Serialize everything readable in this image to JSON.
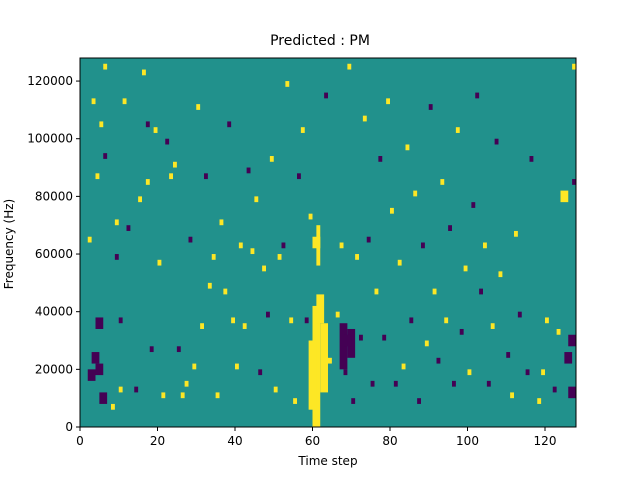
{
  "chart_data": {
    "type": "heatmap",
    "title": "Predicted : PM",
    "xlabel": "Time step",
    "ylabel": "Frequency (Hz)",
    "xlim": [
      0,
      128
    ],
    "ylim": [
      0,
      128000
    ],
    "xticks": [
      "0",
      "20",
      "40",
      "60",
      "80",
      "100",
      "120"
    ],
    "yticks": [
      "0",
      "20000",
      "40000",
      "60000",
      "80000",
      "100000",
      "120000"
    ],
    "grid": false,
    "legend": "none",
    "colormap": {
      "low": "#440154",
      "mid": "#21918c",
      "high": "#fde725"
    },
    "background_value": 0,
    "cells_note_unused": "",
    "cells": [
      [
        2,
        16000,
        4,
        "low"
      ],
      [
        3,
        22000,
        4,
        "low"
      ],
      [
        4,
        18000,
        4,
        "low"
      ],
      [
        5,
        8000,
        4,
        "low"
      ],
      [
        4,
        34000,
        4,
        "low"
      ],
      [
        2,
        64000,
        2,
        "high"
      ],
      [
        3,
        112000,
        2,
        "high"
      ],
      [
        4,
        86000,
        2,
        "high"
      ],
      [
        5,
        104000,
        2,
        "high"
      ],
      [
        6,
        93000,
        2,
        "low"
      ],
      [
        6,
        124000,
        2,
        "high"
      ],
      [
        8,
        6000,
        2,
        "high"
      ],
      [
        9,
        58000,
        2,
        "low"
      ],
      [
        9,
        70000,
        2,
        "high"
      ],
      [
        10,
        36000,
        2,
        "low"
      ],
      [
        11,
        112000,
        2,
        "high"
      ],
      [
        10,
        12000,
        2,
        "high"
      ],
      [
        12,
        68000,
        2,
        "low"
      ],
      [
        14,
        12000,
        2,
        "low"
      ],
      [
        15,
        78000,
        2,
        "high"
      ],
      [
        16,
        122000,
        2,
        "high"
      ],
      [
        17,
        104000,
        2,
        "low"
      ],
      [
        17,
        84000,
        2,
        "high"
      ],
      [
        18,
        26000,
        2,
        "low"
      ],
      [
        19,
        102000,
        2,
        "high"
      ],
      [
        20,
        56000,
        2,
        "high"
      ],
      [
        21,
        10000,
        2,
        "high"
      ],
      [
        22,
        98000,
        2,
        "low"
      ],
      [
        23,
        86000,
        2,
        "high"
      ],
      [
        24,
        90000,
        2,
        "high"
      ],
      [
        25,
        26000,
        2,
        "low"
      ],
      [
        26,
        10000,
        2,
        "high"
      ],
      [
        27,
        14000,
        2,
        "high"
      ],
      [
        28,
        64000,
        2,
        "low"
      ],
      [
        29,
        20000,
        2,
        "high"
      ],
      [
        30,
        110000,
        2,
        "high"
      ],
      [
        31,
        34000,
        2,
        "high"
      ],
      [
        32,
        86000,
        2,
        "low"
      ],
      [
        33,
        48000,
        2,
        "high"
      ],
      [
        34,
        58000,
        2,
        "high"
      ],
      [
        35,
        10000,
        2,
        "high"
      ],
      [
        36,
        70000,
        2,
        "high"
      ],
      [
        37,
        46000,
        2,
        "high"
      ],
      [
        38,
        104000,
        2,
        "low"
      ],
      [
        39,
        36000,
        2,
        "high"
      ],
      [
        40,
        20000,
        2,
        "high"
      ],
      [
        41,
        62000,
        2,
        "high"
      ],
      [
        42,
        34000,
        2,
        "high"
      ],
      [
        43,
        88000,
        2,
        "low"
      ],
      [
        44,
        60000,
        2,
        "high"
      ],
      [
        45,
        78000,
        2,
        "high"
      ],
      [
        46,
        18000,
        2,
        "low"
      ],
      [
        47,
        54000,
        2,
        "high"
      ],
      [
        48,
        38000,
        2,
        "low"
      ],
      [
        49,
        92000,
        2,
        "high"
      ],
      [
        50,
        12000,
        2,
        "high"
      ],
      [
        51,
        58000,
        2,
        "high"
      ],
      [
        52,
        62000,
        2,
        "low"
      ],
      [
        53,
        118000,
        2,
        "high"
      ],
      [
        54,
        36000,
        2,
        "high"
      ],
      [
        55,
        8000,
        2,
        "high"
      ],
      [
        56,
        86000,
        2,
        "low"
      ],
      [
        57,
        102000,
        2,
        "high"
      ],
      [
        58,
        36000,
        2,
        "low"
      ],
      [
        59,
        72000,
        2,
        "high"
      ],
      [
        63,
        114000,
        2,
        "low"
      ],
      [
        64,
        22000,
        2,
        "high"
      ],
      [
        66,
        38000,
        2,
        "high"
      ],
      [
        67,
        62000,
        2,
        "high"
      ],
      [
        68,
        18000,
        2,
        "low"
      ],
      [
        69,
        124000,
        2,
        "high"
      ],
      [
        70,
        8000,
        2,
        "low"
      ],
      [
        71,
        58000,
        2,
        "high"
      ],
      [
        72,
        30000,
        2,
        "low"
      ],
      [
        73,
        106000,
        2,
        "high"
      ],
      [
        74,
        64000,
        2,
        "low"
      ],
      [
        75,
        14000,
        2,
        "low"
      ],
      [
        76,
        46000,
        2,
        "high"
      ],
      [
        77,
        92000,
        2,
        "low"
      ],
      [
        78,
        30000,
        2,
        "low"
      ],
      [
        79,
        112000,
        2,
        "high"
      ],
      [
        80,
        74000,
        2,
        "high"
      ],
      [
        81,
        14000,
        2,
        "low"
      ],
      [
        82,
        56000,
        2,
        "high"
      ],
      [
        83,
        20000,
        2,
        "high"
      ],
      [
        84,
        96000,
        2,
        "high"
      ],
      [
        85,
        36000,
        2,
        "low"
      ],
      [
        86,
        80000,
        2,
        "high"
      ],
      [
        87,
        8000,
        2,
        "low"
      ],
      [
        88,
        62000,
        2,
        "low"
      ],
      [
        89,
        28000,
        2,
        "high"
      ],
      [
        90,
        110000,
        2,
        "low"
      ],
      [
        91,
        46000,
        2,
        "high"
      ],
      [
        92,
        22000,
        2,
        "low"
      ],
      [
        93,
        84000,
        2,
        "high"
      ],
      [
        94,
        36000,
        2,
        "high"
      ],
      [
        95,
        68000,
        2,
        "low"
      ],
      [
        96,
        14000,
        2,
        "low"
      ],
      [
        97,
        102000,
        2,
        "high"
      ],
      [
        98,
        32000,
        2,
        "low"
      ],
      [
        99,
        54000,
        2,
        "high"
      ],
      [
        100,
        18000,
        2,
        "high"
      ],
      [
        101,
        76000,
        2,
        "low"
      ],
      [
        102,
        114000,
        2,
        "low"
      ],
      [
        103,
        46000,
        2,
        "low"
      ],
      [
        104,
        62000,
        2,
        "high"
      ],
      [
        105,
        14000,
        2,
        "low"
      ],
      [
        106,
        34000,
        2,
        "high"
      ],
      [
        107,
        98000,
        2,
        "low"
      ],
      [
        108,
        52000,
        2,
        "high"
      ],
      [
        110,
        24000,
        2,
        "low"
      ],
      [
        111,
        10000,
        2,
        "high"
      ],
      [
        112,
        66000,
        2,
        "high"
      ],
      [
        113,
        38000,
        2,
        "low"
      ],
      [
        115,
        18000,
        2,
        "low"
      ],
      [
        116,
        92000,
        2,
        "low"
      ],
      [
        118,
        8000,
        2,
        "high"
      ],
      [
        119,
        18000,
        2,
        "high"
      ],
      [
        120,
        36000,
        2,
        "high"
      ],
      [
        122,
        12000,
        2,
        "low"
      ],
      [
        123,
        32000,
        2,
        "high"
      ],
      [
        124,
        78000,
        4,
        "high"
      ],
      [
        125,
        22000,
        4,
        "low"
      ],
      [
        126,
        10000,
        4,
        "low"
      ],
      [
        126,
        28000,
        4,
        "low"
      ],
      [
        127,
        124000,
        2,
        "high"
      ],
      [
        127,
        84000,
        2,
        "low"
      ]
    ],
    "blocks": [
      [
        60,
        0,
        62,
        42000,
        "high"
      ],
      [
        59,
        6000,
        61,
        30000,
        "high"
      ],
      [
        62,
        12000,
        64,
        36000,
        "high"
      ],
      [
        61,
        36000,
        63,
        46000,
        "high"
      ],
      [
        67,
        20000,
        69,
        36000,
        "low"
      ],
      [
        69,
        24000,
        71,
        34000,
        "low"
      ],
      [
        68,
        28000,
        70,
        32000,
        "low"
      ],
      [
        60,
        62000,
        62,
        66000,
        "high"
      ],
      [
        61,
        56000,
        62,
        70000,
        "high"
      ]
    ]
  }
}
